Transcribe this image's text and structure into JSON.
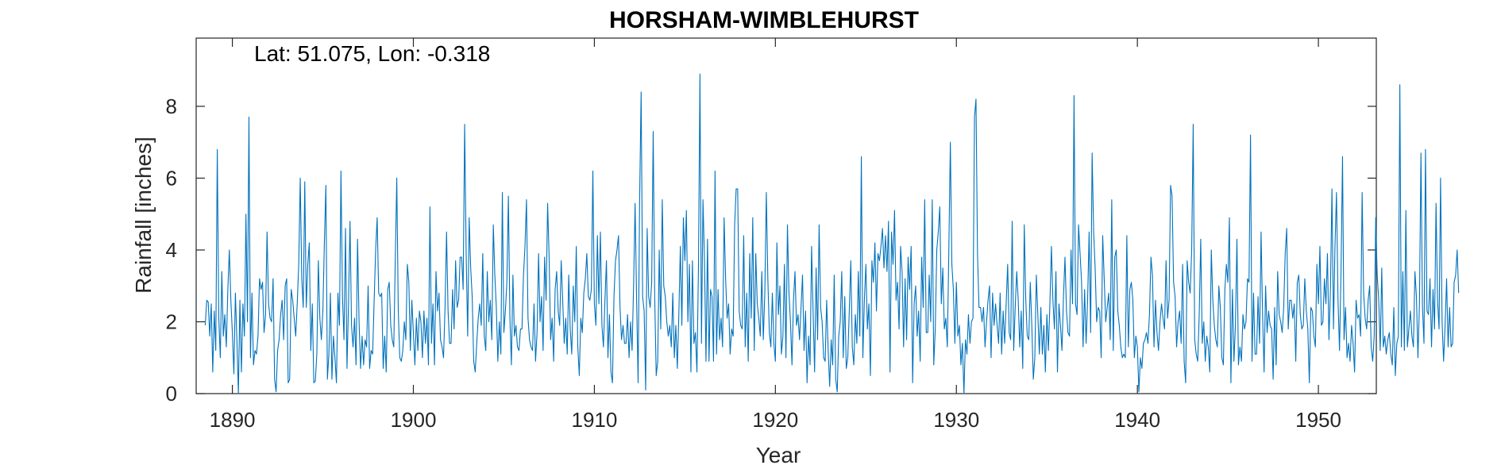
{
  "chart_data": {
    "type": "line",
    "title": "HORSHAM-WIMBLEHURST",
    "annotation": "Lat: 51.075, Lon: -0.318",
    "xlabel": "Year",
    "ylabel": "Rainfall [inches]",
    "xlim": [
      1888.0,
      1953.2
    ],
    "ylim": [
      0,
      9.9
    ],
    "xticks": [
      1890,
      1900,
      1910,
      1920,
      1930,
      1940,
      1950
    ],
    "yticks": [
      0,
      2,
      4,
      6,
      8
    ],
    "grid": false,
    "line_color": "#0072BD",
    "start_year": 1888.5,
    "months_step": 0.0833333,
    "series": [
      {
        "name": "",
        "values": [
          1.9,
          2.6,
          2.55,
          1.6,
          2.5,
          0.6,
          2.3,
          1.2,
          6.8,
          2.1,
          1.0,
          3.4,
          1.6,
          2.2,
          1.3,
          2.9,
          4.0,
          2.6,
          1.7,
          0.55,
          2.8,
          1.5,
          0.0,
          2.6,
          0.6,
          2.5,
          1.6,
          5.0,
          2.0,
          7.7,
          1.0,
          2.8,
          0.8,
          1.2,
          1.1,
          1.6,
          3.2,
          2.9,
          3.1,
          1.7,
          2.2,
          4.5,
          2.5,
          2.1,
          2.0,
          3.2,
          0.4,
          0.05,
          1.2,
          1.5,
          2.2,
          2.6,
          1.5,
          3.0,
          3.2,
          0.3,
          0.4,
          2.9,
          2.6,
          2.1,
          1.6,
          2.5,
          3.6,
          6.0,
          3.2,
          2.4,
          5.9,
          2.4,
          3.6,
          4.2,
          1.2,
          2.5,
          0.3,
          0.35,
          1.1,
          3.7,
          2.1,
          1.5,
          2.3,
          4.2,
          5.8,
          0.4,
          1.1,
          2.8,
          0.4,
          1.6,
          1.0,
          0.3,
          2.8,
          1.9,
          6.2,
          2.7,
          1.5,
          4.6,
          0.7,
          2.5,
          4.8,
          1.9,
          1.3,
          2.1,
          0.8,
          4.3,
          2.0,
          0.7,
          1.6,
          0.8,
          1.5,
          1.3,
          3.0,
          0.7,
          1.2,
          1.1,
          2.6,
          4.0,
          4.9,
          2.8,
          2.7,
          2.8,
          0.7,
          1.6,
          0.6,
          2.9,
          3.1,
          1.9,
          1.5,
          1.3,
          3.7,
          6.0,
          2.3,
          1.0,
          0.9,
          1.2,
          2.0,
          1.5,
          3.6,
          3.1,
          1.2,
          2.6,
          1.7,
          0.8,
          2.1,
          1.2,
          2.3,
          2.0,
          1.0,
          2.3,
          1.4,
          2.1,
          0.8,
          5.2,
          1.4,
          2.5,
          0.8,
          3.4,
          2.3,
          2.8,
          1.5,
          1.3,
          1.0,
          2.4,
          4.5,
          2.3,
          1.4,
          1.4,
          2.9,
          1.8,
          3.7,
          2.4,
          2.6,
          3.8,
          3.8,
          2.9,
          7.5,
          3.9,
          1.6,
          4.9,
          3.5,
          2.7,
          0.9,
          0.6,
          1.4,
          2.1,
          2.5,
          1.9,
          3.9,
          1.6,
          1.2,
          3.4,
          2.0,
          2.6,
          1.5,
          4.7,
          3.3,
          2.4,
          0.9,
          2.0,
          1.1,
          5.6,
          1.7,
          2.3,
          3.1,
          5.5,
          2.1,
          0.8,
          3.3,
          1.6,
          1.9,
          1.3,
          1.2,
          1.8,
          1.8,
          3.3,
          4.1,
          5.4,
          2.1,
          1.5,
          1.3,
          1.2,
          2.5,
          0.9,
          1.7,
          3.9,
          2.0,
          2.7,
          1.2,
          3.8,
          2.6,
          5.3,
          3.8,
          1.5,
          2.1,
          0.9,
          2.9,
          3.4,
          2.3,
          1.9,
          3.7,
          2.6,
          1.4,
          2.1,
          1.1,
          3.3,
          1.8,
          1.1,
          3.0,
          2.0,
          4.1,
          1.3,
          0.5,
          2.1,
          1.7,
          2.8,
          3.2,
          3.9,
          2.7,
          2.6,
          2.9,
          6.2,
          2.5,
          1.9,
          4.4,
          2.5,
          4.5,
          1.9,
          1.3,
          2.6,
          3.7,
          1.0,
          2.2,
          0.6,
          0.3,
          2.7,
          3.7,
          4.0,
          4.4,
          2.4,
          1.5,
          1.9,
          1.4,
          1.4,
          2.2,
          1.0,
          2.0,
          1.2,
          3.0,
          5.3,
          2.6,
          0.3,
          5.4,
          8.4,
          2.7,
          2.3,
          0.1,
          4.6,
          2.7,
          2.4,
          3.1,
          7.3,
          2.7,
          0.5,
          0.9,
          4.0,
          1.8,
          5.4,
          3.0,
          2.7,
          2.0,
          1.6,
          1.9,
          1.3,
          2.8,
          1.0,
          1.9,
          0.7,
          2.2,
          4.1,
          1.9,
          4.9,
          3.7,
          5.1,
          2.0,
          3.6,
          0.6,
          3.7,
          1.4,
          1.7,
          0.6,
          3.5,
          8.9,
          1.4,
          5.4,
          3.7,
          0.9,
          4.3,
          0.9,
          2.9,
          2.7,
          0.9,
          6.2,
          1.1,
          2.9,
          1.5,
          2.1,
          1.3,
          4.9,
          3.2,
          2.1,
          2.5,
          1.1,
          1.8,
          1.6,
          4.7,
          5.7,
          5.7,
          2.3,
          1.9,
          1.8,
          4.4,
          1.3,
          2.8,
          0.9,
          3.9,
          2.1,
          4.9,
          1.2,
          3.9,
          2.5,
          2.1,
          1.6,
          3.4,
          1.5,
          2.8,
          5.6,
          3.2,
          1.7,
          1.3,
          2.8,
          1.4,
          0.9,
          4.2,
          2.2,
          3.0,
          1.1,
          1.6,
          3.6,
          1.0,
          4.7,
          2.8,
          2.0,
          0.8,
          2.6,
          3.4,
          1.9,
          2.2,
          1.5,
          2.4,
          3.3,
          1.2,
          2.3,
          0.3,
          1.6,
          0.8,
          4.1,
          2.3,
          0.6,
          3.5,
          1.5,
          4.7,
          2.4,
          2.0,
          1.0,
          0.9,
          2.6,
          1.2,
          0.2,
          1.5,
          0.8,
          3.3,
          0.4,
          0.05,
          1.6,
          2.0,
          3.4,
          1.0,
          2.7,
          0.7,
          1.0,
          2.3,
          3.7,
          1.3,
          0.8,
          2.2,
          1.4,
          3.4,
          1.6,
          6.6,
          1.0,
          2.6,
          3.6,
          1.8,
          2.5,
          0.5,
          3.7,
          3.1,
          4.2,
          2.3,
          3.9,
          3.7,
          4.1,
          4.6,
          3.5,
          4.4,
          3.4,
          4.8,
          0.6,
          4.5,
          3.6,
          5.1,
          2.6,
          3.1,
          1.8,
          4.1,
          3.4,
          1.3,
          3.2,
          1.5,
          3.8,
          2.9,
          4.1,
          0.3,
          2.5,
          3.0,
          1.6,
          2.3,
          0.9,
          3.8,
          2.4,
          5.4,
          1.7,
          1.7,
          3.3,
          2.0,
          5.4,
          0.8,
          1.8,
          4.0,
          4.5,
          5.2,
          2.5,
          3.5,
          1.8,
          2.1,
          1.3,
          4.0,
          7.0,
          3.6,
          2.9,
          1.4,
          3.1,
          1.6,
          1.9,
          0.8,
          1.4,
          0.0,
          1.5,
          1.1,
          2.2,
          1.4,
          2.0,
          2.1,
          7.7,
          8.2,
          3.9,
          2.4,
          2.4,
          2.0,
          2.4,
          1.3,
          2.0,
          2.6,
          3.0,
          1.0,
          2.8,
          1.9,
          2.5,
          1.9,
          1.4,
          2.8,
          1.1,
          2.3,
          1.4,
          2.5,
          3.6,
          1.7,
          1.5,
          4.8,
          1.2,
          2.4,
          3.4,
          2.6,
          1.3,
          2.3,
          0.7,
          4.7,
          2.6,
          1.6,
          1.5,
          3.1,
          1.9,
          0.4,
          1.0,
          3.3,
          2.2,
          1.1,
          2.4,
          1.1,
          1.9,
          0.6,
          2.2,
          1.2,
          2.5,
          4.1,
          2.6,
          1.8,
          3.4,
          0.6,
          2.5,
          1.9,
          1.2,
          2.7,
          3.8,
          2.3,
          1.7,
          1.6,
          4.0,
          2.5,
          8.3,
          2.5,
          2.2,
          4.7,
          3.9,
          3.1,
          1.3,
          2.9,
          1.4,
          2.6,
          4.5,
          1.7,
          6.7,
          4.5,
          3.5,
          2.0,
          2.4,
          2.3,
          1.0,
          4.4,
          3.2,
          2.0,
          2.4,
          2.8,
          1.5,
          5.4,
          1.2,
          3.8,
          4.0,
          2.3,
          1.9,
          1.3,
          1.0,
          1.1,
          1.0,
          4.4,
          1.3,
          2.9,
          3.1,
          2.6,
          1.0,
          1.6,
          1.3,
          0.05,
          1.0,
          0.7,
          1.4,
          1.5,
          1.7,
          1.4,
          2.2,
          3.8,
          3.3,
          1.3,
          2.6,
          1.7,
          1.2,
          2.0,
          2.5,
          2.1,
          1.8,
          3.7,
          2.1,
          2.6,
          5.8,
          5.5,
          3.1,
          2.7,
          1.3,
          2.0,
          2.3,
          1.4,
          3.6,
          0.9,
          0.3,
          3.7,
          3.1,
          2.8,
          4.0,
          7.5,
          1.5,
          1.1,
          0.9,
          2.2,
          4.3,
          1.4,
          2.0,
          0.9,
          1.6,
          1.3,
          0.6,
          4.0,
          2.6,
          1.9,
          1.5,
          1.3,
          3.0,
          2.4,
          1.0,
          0.8,
          2.9,
          3.6,
          3.1,
          4.9,
          0.3,
          2.9,
          0.9,
          1.9,
          4.3,
          0.8,
          1.3,
          0.9,
          2.2,
          1.8,
          2.0,
          3.2,
          3.1,
          7.2,
          0.9,
          2.8,
          1.1,
          1.1,
          2.7,
          1.4,
          4.5,
          2.2,
          0.6,
          3.0,
          1.7,
          2.3,
          1.9,
          1.8,
          0.4,
          2.4,
          0.8,
          3.4,
          2.2,
          2.0,
          1.7,
          2.4,
          3.9,
          4.6,
          1.8,
          2.6,
          2.6,
          2.1,
          2.5,
          0.9,
          3.1,
          3.3,
          2.2,
          1.8,
          1.9,
          3.2,
          2.3,
          1.8,
          0.3,
          2.4,
          2.3,
          1.6,
          1.3,
          3.6,
          2.5,
          4.1,
          1.9,
          2.0,
          3.2,
          2.5,
          3.9,
          1.5,
          2.9,
          5.7,
          1.8,
          4.1,
          5.6,
          2.6,
          1.2,
          3.4,
          6.6,
          1.5,
          2.4,
          1.0,
          1.4,
          0.9,
          1.9,
          1.4,
          0.6,
          2.6,
          2.1,
          2.2,
          1.6,
          5.6,
          2.8,
          2.1,
          1.8,
          2.6,
          3.0,
          1.3,
          0.9,
          1.6,
          4.9,
          3.3,
          2.6,
          1.2,
          3.5,
          1.3,
          1.6,
          1.1,
          1.5,
          1.7,
          1.1,
          0.8,
          2.4,
          0.5,
          1.4,
          1.6,
          8.6,
          1.3,
          3.4,
          1.2,
          5.1,
          1.3,
          1.8,
          2.3,
          1.6,
          1.3,
          3.4,
          2.7,
          1.0,
          2.5,
          6.7,
          2.4,
          1.4,
          6.8,
          2.3,
          2.2,
          3.2,
          1.3,
          2.9,
          1.8,
          5.3,
          2.6,
          1.8,
          6.0,
          2.0,
          0.9,
          1.9,
          3.2,
          1.3,
          2.4,
          1.3,
          1.4,
          3.1,
          3.3,
          4.0,
          2.8
        ]
      }
    ]
  }
}
